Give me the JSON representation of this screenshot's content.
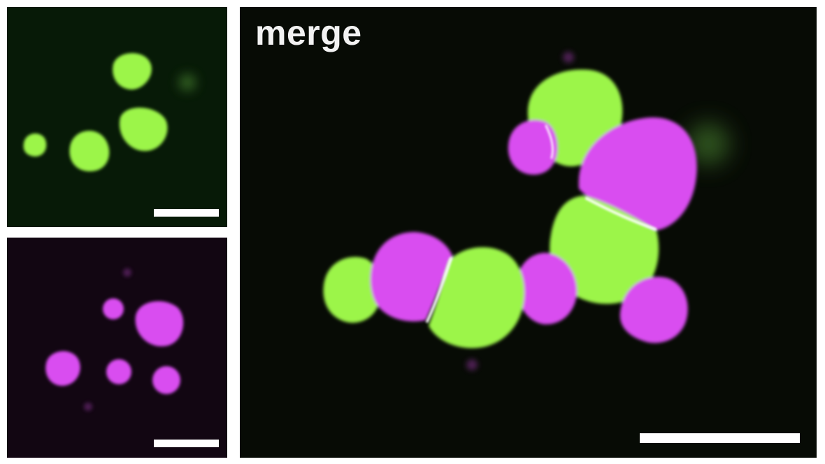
{
  "figure": {
    "panels": [
      {
        "id": "green-channel",
        "channel": "green",
        "color": "#9cf54a"
      },
      {
        "id": "magenta-channel",
        "channel": "magenta",
        "color": "#d94df0"
      },
      {
        "id": "merge",
        "label": "merge",
        "label_color": "#f2f2f2"
      }
    ]
  },
  "colors": {
    "green_droplet": "#9cf54a",
    "magenta_droplet": "#d94df0",
    "interface_highlight": "#ffffff",
    "green_background": "#071a07",
    "magenta_background": "#120612",
    "merge_background": "#070b05",
    "scale_bar": "#ffffff"
  }
}
